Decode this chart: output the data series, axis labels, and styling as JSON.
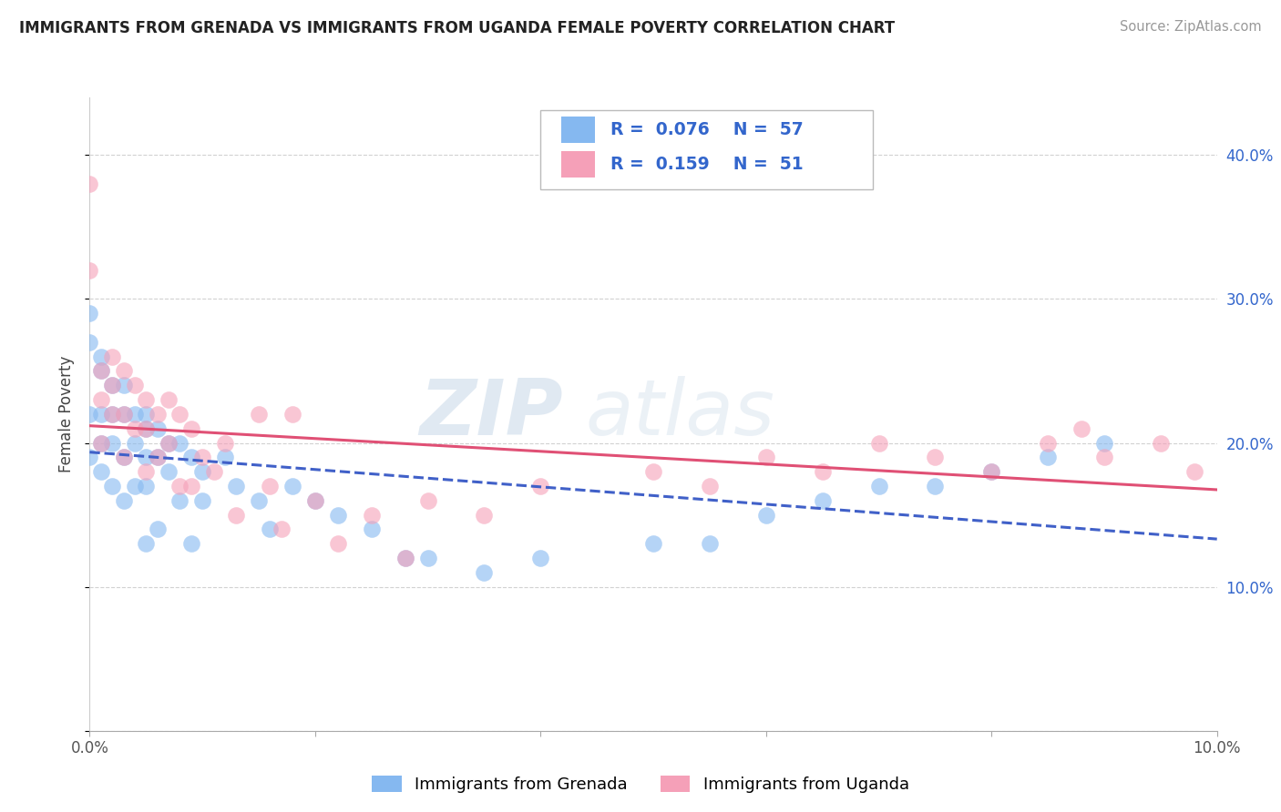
{
  "title": "IMMIGRANTS FROM GRENADA VS IMMIGRANTS FROM UGANDA FEMALE POVERTY CORRELATION CHART",
  "source": "Source: ZipAtlas.com",
  "ylabel": "Female Poverty",
  "xlim": [
    0.0,
    0.1
  ],
  "ylim": [
    0.0,
    0.44
  ],
  "grenada_color": "#85b8f0",
  "uganda_color": "#f5a0b8",
  "grenada_R": 0.076,
  "grenada_N": 57,
  "uganda_R": 0.159,
  "uganda_N": 51,
  "grenada_line_color": "#4060c8",
  "uganda_line_color": "#e05075",
  "value_color": "#3366cc",
  "title_color": "#222222",
  "source_color": "#999999",
  "watermark_top": "ZIP",
  "watermark_bot": "atlas",
  "grenada_x": [
    0.0,
    0.0,
    0.0,
    0.0,
    0.001,
    0.001,
    0.001,
    0.001,
    0.001,
    0.002,
    0.002,
    0.002,
    0.002,
    0.003,
    0.003,
    0.003,
    0.003,
    0.004,
    0.004,
    0.004,
    0.005,
    0.005,
    0.005,
    0.005,
    0.005,
    0.006,
    0.006,
    0.006,
    0.007,
    0.007,
    0.008,
    0.008,
    0.009,
    0.009,
    0.01,
    0.01,
    0.012,
    0.013,
    0.015,
    0.016,
    0.018,
    0.02,
    0.022,
    0.025,
    0.028,
    0.03,
    0.035,
    0.04,
    0.05,
    0.055,
    0.06,
    0.065,
    0.07,
    0.075,
    0.08,
    0.085,
    0.09
  ],
  "grenada_y": [
    0.29,
    0.27,
    0.22,
    0.19,
    0.26,
    0.25,
    0.22,
    0.2,
    0.18,
    0.24,
    0.22,
    0.2,
    0.17,
    0.24,
    0.22,
    0.19,
    0.16,
    0.22,
    0.2,
    0.17,
    0.22,
    0.21,
    0.19,
    0.17,
    0.13,
    0.21,
    0.19,
    0.14,
    0.2,
    0.18,
    0.2,
    0.16,
    0.19,
    0.13,
    0.18,
    0.16,
    0.19,
    0.17,
    0.16,
    0.14,
    0.17,
    0.16,
    0.15,
    0.14,
    0.12,
    0.12,
    0.11,
    0.12,
    0.13,
    0.13,
    0.15,
    0.16,
    0.17,
    0.17,
    0.18,
    0.19,
    0.2
  ],
  "uganda_x": [
    0.0,
    0.0,
    0.001,
    0.001,
    0.001,
    0.002,
    0.002,
    0.002,
    0.003,
    0.003,
    0.003,
    0.004,
    0.004,
    0.005,
    0.005,
    0.005,
    0.006,
    0.006,
    0.007,
    0.007,
    0.008,
    0.008,
    0.009,
    0.009,
    0.01,
    0.011,
    0.012,
    0.013,
    0.015,
    0.016,
    0.017,
    0.018,
    0.02,
    0.022,
    0.025,
    0.028,
    0.03,
    0.035,
    0.04,
    0.05,
    0.055,
    0.06,
    0.065,
    0.07,
    0.075,
    0.08,
    0.085,
    0.088,
    0.09,
    0.095,
    0.098
  ],
  "uganda_y": [
    0.38,
    0.32,
    0.25,
    0.23,
    0.2,
    0.26,
    0.24,
    0.22,
    0.25,
    0.22,
    0.19,
    0.24,
    0.21,
    0.23,
    0.21,
    0.18,
    0.22,
    0.19,
    0.23,
    0.2,
    0.22,
    0.17,
    0.21,
    0.17,
    0.19,
    0.18,
    0.2,
    0.15,
    0.22,
    0.17,
    0.14,
    0.22,
    0.16,
    0.13,
    0.15,
    0.12,
    0.16,
    0.15,
    0.17,
    0.18,
    0.17,
    0.19,
    0.18,
    0.2,
    0.19,
    0.18,
    0.2,
    0.21,
    0.19,
    0.2,
    0.18
  ]
}
